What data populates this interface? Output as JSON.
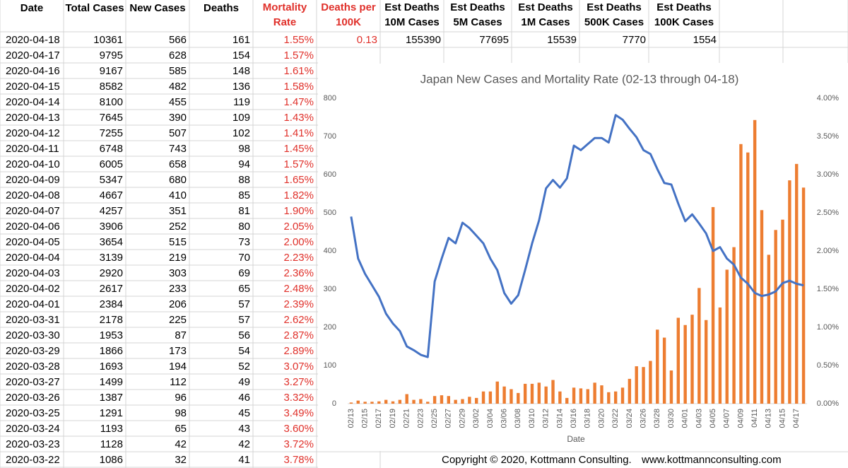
{
  "table": {
    "header": [
      [
        "Date"
      ],
      [
        "Total Cases"
      ],
      [
        "New Cases"
      ],
      [
        "Deaths"
      ],
      [
        "Mortality",
        "Rate"
      ],
      [
        "Deaths per",
        "100K"
      ],
      [
        "Est Deaths",
        "10M Cases"
      ],
      [
        "Est Deaths",
        "5M Cases"
      ],
      [
        "Est Deaths",
        "1M Cases"
      ],
      [
        "Est Deaths",
        "500K Cases"
      ],
      [
        "Est Deaths",
        "100K Cases"
      ]
    ],
    "extra": [
      "0.13",
      155390,
      77695,
      15539,
      7770,
      1554
    ],
    "rows": [
      [
        "2020-04-18",
        10361,
        566,
        161,
        "1.55%"
      ],
      [
        "2020-04-17",
        9795,
        628,
        154,
        "1.57%"
      ],
      [
        "2020-04-16",
        9167,
        585,
        148,
        "1.61%"
      ],
      [
        "2020-04-15",
        8582,
        482,
        136,
        "1.58%"
      ],
      [
        "2020-04-14",
        8100,
        455,
        119,
        "1.47%"
      ],
      [
        "2020-04-13",
        7645,
        390,
        109,
        "1.43%"
      ],
      [
        "2020-04-12",
        7255,
        507,
        102,
        "1.41%"
      ],
      [
        "2020-04-11",
        6748,
        743,
        98,
        "1.45%"
      ],
      [
        "2020-04-10",
        6005,
        658,
        94,
        "1.57%"
      ],
      [
        "2020-04-09",
        5347,
        680,
        88,
        "1.65%"
      ],
      [
        "2020-04-08",
        4667,
        410,
        85,
        "1.82%"
      ],
      [
        "2020-04-07",
        4257,
        351,
        81,
        "1.90%"
      ],
      [
        "2020-04-06",
        3906,
        252,
        80,
        "2.05%"
      ],
      [
        "2020-04-05",
        3654,
        515,
        73,
        "2.00%"
      ],
      [
        "2020-04-04",
        3139,
        219,
        70,
        "2.23%"
      ],
      [
        "2020-04-03",
        2920,
        303,
        69,
        "2.36%"
      ],
      [
        "2020-04-02",
        2617,
        233,
        65,
        "2.48%"
      ],
      [
        "2020-04-01",
        2384,
        206,
        57,
        "2.39%"
      ],
      [
        "2020-03-31",
        2178,
        225,
        57,
        "2.62%"
      ],
      [
        "2020-03-30",
        1953,
        87,
        56,
        "2.87%"
      ],
      [
        "2020-03-29",
        1866,
        173,
        54,
        "2.89%"
      ],
      [
        "2020-03-28",
        1693,
        194,
        52,
        "3.07%"
      ],
      [
        "2020-03-27",
        1499,
        112,
        49,
        "3.27%"
      ],
      [
        "2020-03-26",
        1387,
        96,
        46,
        "3.32%"
      ],
      [
        "2020-03-25",
        1291,
        98,
        45,
        "3.49%"
      ],
      [
        "2020-03-24",
        1193,
        65,
        43,
        "3.60%"
      ],
      [
        "2020-03-23",
        1128,
        42,
        42,
        "3.72%"
      ],
      [
        "2020-03-22",
        1086,
        32,
        41,
        "3.78%"
      ]
    ]
  },
  "footer": {
    "copyright": "Copyright © 2020, Kottmann Consulting.",
    "url": "www.kottmannconsulting.com"
  },
  "chart_data": {
    "type": "combo",
    "title": "Japan New Cases and Mortality Rate (02-13 through 04-18)",
    "x_label": "Date",
    "categories": [
      "02/13",
      null,
      "02/15",
      null,
      "02/17",
      null,
      "02/19",
      null,
      "02/21",
      null,
      "02/23",
      null,
      "02/25",
      null,
      "02/27",
      null,
      "02/29",
      null,
      "03/02",
      null,
      "03/04",
      null,
      "03/06",
      null,
      "03/08",
      null,
      "03/10",
      null,
      "03/12",
      null,
      "03/14",
      null,
      "03/16",
      null,
      "03/18",
      null,
      "03/20",
      null,
      "03/22",
      null,
      "03/24",
      null,
      "03/26",
      null,
      "03/28",
      null,
      "03/30",
      null,
      "04/01",
      null,
      "04/03",
      null,
      "04/05",
      null,
      "04/07",
      null,
      "04/09",
      null,
      "04/11",
      null,
      "04/13",
      null,
      "04/15",
      null,
      "04/17",
      null
    ],
    "series": [
      {
        "type": "bar",
        "color": "#ed7d31",
        "values": [
          3,
          8,
          5,
          5,
          6,
          10,
          6,
          10,
          25,
          10,
          12,
          5,
          20,
          22,
          20,
          10,
          12,
          18,
          15,
          32,
          32,
          58,
          45,
          38,
          28,
          52,
          52,
          55,
          45,
          62,
          32,
          15,
          42,
          40,
          38,
          55,
          48,
          30,
          32,
          42,
          65,
          98,
          96,
          112,
          194,
          173,
          87,
          225,
          206,
          233,
          303,
          219,
          515,
          252,
          351,
          410,
          680,
          658,
          743,
          507,
          390,
          455,
          482,
          585,
          628,
          566
        ]
      },
      {
        "type": "line",
        "axis": "y2",
        "color": "#4472c4",
        "values": [
          2.45,
          1.9,
          1.7,
          1.55,
          1.4,
          1.18,
          1.05,
          0.95,
          0.75,
          0.7,
          0.64,
          0.61,
          1.6,
          1.9,
          2.17,
          2.1,
          2.37,
          2.3,
          2.2,
          2.1,
          1.9,
          1.75,
          1.45,
          1.31,
          1.42,
          1.75,
          2.1,
          2.4,
          2.82,
          2.93,
          2.83,
          2.95,
          3.38,
          3.32,
          3.4,
          3.48,
          3.48,
          3.42,
          3.78,
          3.72,
          3.6,
          3.49,
          3.32,
          3.27,
          3.07,
          2.89,
          2.87,
          2.62,
          2.39,
          2.48,
          2.36,
          2.23,
          2.0,
          2.05,
          1.9,
          1.82,
          1.65,
          1.57,
          1.45,
          1.41,
          1.43,
          1.47,
          1.58,
          1.61,
          1.57,
          1.55
        ]
      }
    ],
    "ylim": [
      0,
      800
    ],
    "yticks": [
      0,
      100,
      200,
      300,
      400,
      500,
      600,
      700,
      800
    ],
    "y2lim": [
      0,
      4
    ],
    "y2ticks": [
      {
        "value": 0,
        "label": "0.00%"
      },
      {
        "value": 0.5,
        "label": "0.50%"
      },
      {
        "value": 1,
        "label": "1.00%"
      },
      {
        "value": 1.5,
        "label": "1.50%"
      },
      {
        "value": 2,
        "label": "2.00%"
      },
      {
        "value": 2.5,
        "label": "2.50%"
      },
      {
        "value": 3,
        "label": "3.00%"
      },
      {
        "value": 3.5,
        "label": "3.50%"
      },
      {
        "value": 4,
        "label": "4.00%"
      }
    ]
  }
}
